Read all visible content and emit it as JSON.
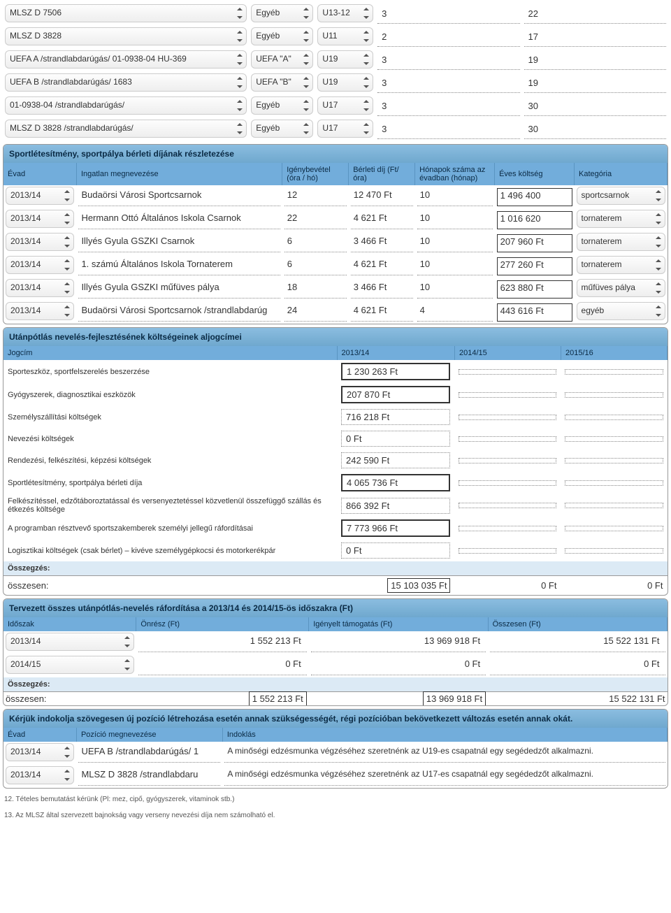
{
  "top_rows": [
    {
      "c1": "MLSZ D 7506",
      "c2": "Egyéb",
      "c3": "U13-12",
      "c4": "3",
      "c5": "22"
    },
    {
      "c1": "MLSZ D 3828",
      "c2": "Egyéb",
      "c3": "U11",
      "c4": "2",
      "c5": "17"
    },
    {
      "c1": "UEFA A /strandlabdarúgás/ 01-0938-04 HU-369",
      "c2": "UEFA \"A\"",
      "c3": "U19",
      "c4": "3",
      "c5": "19"
    },
    {
      "c1": "UEFA B /strandlabdarúgás/ 1683",
      "c2": "UEFA \"B\"",
      "c3": "U19",
      "c4": "3",
      "c5": "19"
    },
    {
      "c1": "01-0938-04 /strandlabdarúgás/",
      "c2": "Egyéb",
      "c3": "U17",
      "c4": "3",
      "c5": "30"
    },
    {
      "c1": "MLSZ D 3828 /strandlabdarúgás/",
      "c2": "Egyéb",
      "c3": "U17",
      "c4": "3",
      "c5": "30"
    }
  ],
  "colors": {
    "header_bg": "#72addb",
    "section_bg_top": "#8bbde0"
  },
  "section1": {
    "title": "Sportlétesítmény, sportpálya bérleti díjának részletezése",
    "headers": {
      "evad": "Évad",
      "ingatlan": "Ingatlan megnevezése",
      "igeny": "Igénybevétel (óra / hó)",
      "berleti": "Bérleti díj (Ft/óra)",
      "honap": "Hónapok száma az évadban (hónap)",
      "eves": "Éves költség",
      "kat": "Kategória"
    },
    "rows": [
      {
        "evad": "2013/14",
        "ing": "Budaörsi Városi Sportcsarnok",
        "ig": "12",
        "bd": "12 470 Ft",
        "ho": "10",
        "ek": "1 496 400",
        "kat": "sportcsarnok"
      },
      {
        "evad": "2013/14",
        "ing": "Hermann Ottó Általános Iskola Csarnok",
        "ig": "22",
        "bd": "4 621 Ft",
        "ho": "10",
        "ek": "1 016 620",
        "kat": "tornaterem"
      },
      {
        "evad": "2013/14",
        "ing": "Illyés Gyula GSZKI Csarnok",
        "ig": "6",
        "bd": "3 466 Ft",
        "ho": "10",
        "ek": "207 960  Ft",
        "kat": "tornaterem"
      },
      {
        "evad": "2013/14",
        "ing": "1. számú Általános Iskola Tornaterem",
        "ig": "6",
        "bd": "4 621 Ft",
        "ho": "10",
        "ek": "277 260 Ft",
        "kat": "tornaterem"
      },
      {
        "evad": "2013/14",
        "ing": "Illyés Gyula GSZKI műfüves pálya",
        "ig": "18",
        "bd": "3 466 Ft",
        "ho": "10",
        "ek": "623 880 Ft",
        "kat": "műfüves pálya"
      },
      {
        "evad": "2013/14",
        "ing": "Budaörsi Városi Sportcsarnok /strandlabdarúg",
        "ig": "24",
        "bd": "4 621 Ft",
        "ho": "4",
        "ek": "443 616 Ft",
        "kat": "egyéb"
      }
    ]
  },
  "section2": {
    "title": "Utánpótlás nevelés-fejlesztésének költségeinek aljogcímei",
    "headers": {
      "jog": "Jogcím",
      "y1": "2013/14",
      "y2": "2014/15",
      "y3": "2015/16"
    },
    "rows": [
      {
        "lbl": "Sporteszköz, sportfelszerelés beszerzése",
        "v": "1 230 263  Ft",
        "strong": true
      },
      {
        "lbl": "Gyógyszerek, diagnosztikai eszközök",
        "v": "207 870  Ft",
        "strong": true
      },
      {
        "lbl": "Személyszállítási költségek",
        "v": "716 218 Ft",
        "strong": false
      },
      {
        "lbl": "Nevezési költségek",
        "v": "0 Ft",
        "strong": false
      },
      {
        "lbl": "Rendezési, felkészítési, képzési költségek",
        "v": "242 590 Ft",
        "strong": false
      },
      {
        "lbl": "Sportlétesítmény, sportpálya bérleti díja",
        "v": "4 065 736  Ft",
        "strong": true
      },
      {
        "lbl": "Felkészítéssel, edzőtáboroztatással és versenyeztetéssel közvetlenül összefüggő szállás és étkezés költsége",
        "v": "866 392 Ft",
        "strong": false
      },
      {
        "lbl": "A programban résztvevő sportszakemberek személyi jellegű ráfordításai",
        "v": "7 773 966  Ft",
        "strong": true
      },
      {
        "lbl": "Logisztikai költségek (csak bérlet) – kivéve személygépkocsi és motorkerékpár",
        "v": "0 Ft",
        "strong": false
      }
    ],
    "sum_label": "Összegzés:",
    "sum_row_label": "összesen:",
    "sum1": "15 103 035 Ft",
    "sum2": "0 Ft",
    "sum3": "0 Ft"
  },
  "section3": {
    "title": "Tervezett összes utánpótlás-nevelés ráfordítása a 2013/14 és 2014/15-ös időszakra (Ft)",
    "headers": {
      "ido": "Időszak",
      "on": "Önrész (Ft)",
      "ig": "Igényelt támogatás (Ft)",
      "os": "Összesen (Ft)"
    },
    "rows": [
      {
        "evad": "2013/14",
        "on": "1 552 213 Ft",
        "ig": "13 969 918 Ft",
        "os": "15 522 131 Ft"
      },
      {
        "evad": "2014/15",
        "on": "0 Ft",
        "ig": "0 Ft",
        "os": "0 Ft"
      }
    ],
    "sum_label": "Összegzés:",
    "sum_row_label": "összesen:",
    "t1": "1 552 213 Ft",
    "t2": "13 969 918 Ft",
    "t3": "15 522 131 Ft"
  },
  "section4": {
    "title": "Kérjük indokolja szövegesen új pozíció létrehozása esetén annak szükségességét, régi pozícióban bekövetkezett változás esetén annak okát.",
    "headers": {
      "evad": "Évad",
      "poz": "Pozíció megnevezése",
      "ind": "Indoklás"
    },
    "rows": [
      {
        "evad": "2013/14",
        "poz": "UEFA B /strandlabdarúgás/ 1",
        "ind": "A minőségi edzésmunka végzéséhez szeretnénk az U19-es csapatnál egy segédedzőt alkalmazni."
      },
      {
        "evad": "2013/14",
        "poz": "MLSZ D 3828 /strandlabdaru",
        "ind": "A minőségi edzésmunka végzéséhez szeretnénk az U17-es csapatnál egy segédedzőt alkalmazni."
      }
    ]
  },
  "footnotes": {
    "f12": "12. Tételes bemutatást kérünk (Pl: mez, cipő, gyógyszerek, vitaminok stb.)",
    "f13": "13. Az MLSZ által szervezett bajnokság vagy verseny nevezési díja nem számolható el."
  }
}
